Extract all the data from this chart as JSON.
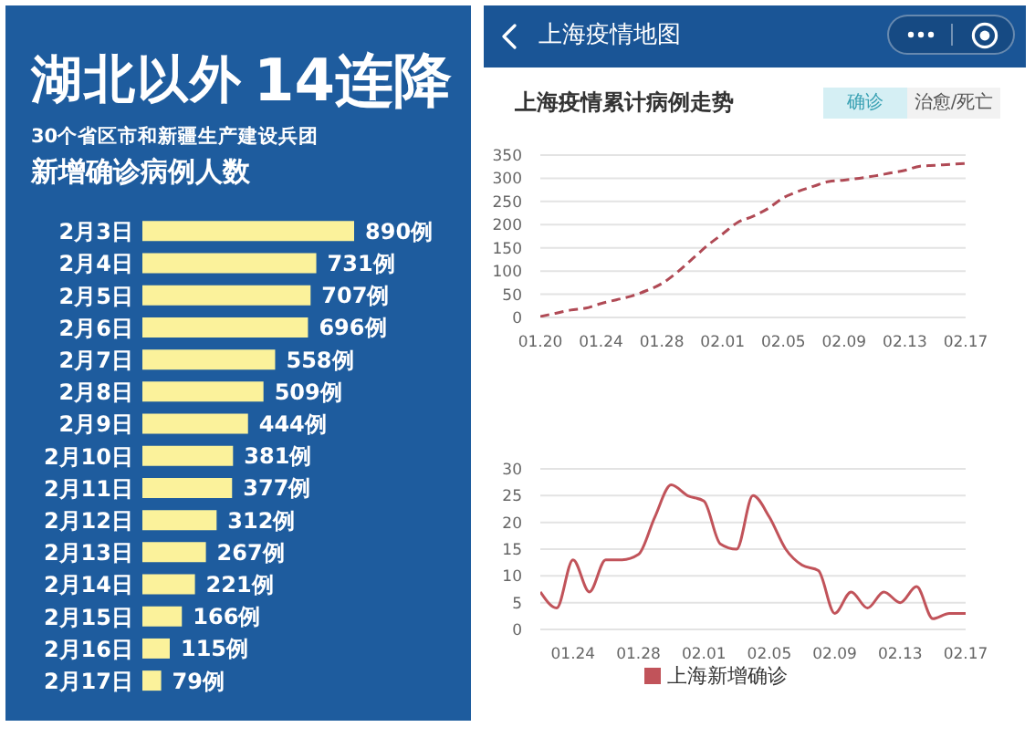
{
  "chart_data": [
    {
      "type": "bar",
      "orientation": "horizontal",
      "title": "湖北以外",
      "subtitle": "30个省区市和新疆生产建设兵团",
      "annotations": [
        "14连降",
        "新增确诊病例人数"
      ],
      "categories": [
        "2月3日",
        "2月4日",
        "2月5日",
        "2月6日",
        "2月7日",
        "2月8日",
        "2月9日",
        "2月10日",
        "2月11日",
        "2月12日",
        "2月13日",
        "2月14日",
        "2月15日",
        "2月16日",
        "2月17日"
      ],
      "values": [
        890,
        731,
        707,
        696,
        558,
        509,
        444,
        381,
        377,
        312,
        267,
        221,
        166,
        115,
        79
      ],
      "value_labels": [
        "890例",
        "731例",
        "707例",
        "696例",
        "558例",
        "509例",
        "444例",
        "381例",
        "377例",
        "312例",
        "267例",
        "221例",
        "166例",
        "115例",
        "79例"
      ],
      "color": "#fbf29b"
    },
    {
      "type": "line",
      "title": "上海疫情累计病例走势",
      "annotations": [
        "上海疫情地图",
        "确诊",
        "治愈/死亡"
      ],
      "categories": [
        "01.20",
        null,
        null,
        null,
        "01.24",
        null,
        null,
        null,
        "01.28",
        null,
        null,
        null,
        "02.01",
        null,
        null,
        null,
        "02.05",
        null,
        null,
        null,
        "02.09",
        null,
        null,
        null,
        "02.13",
        null,
        null,
        null,
        "02.17"
      ],
      "series": [
        {
          "color": "#b04a55",
          "values": [
            2,
            9,
            16,
            20,
            30,
            38,
            46,
            58,
            73,
            97,
            126,
            155,
            180,
            205,
            218,
            235,
            258,
            272,
            283,
            293,
            296,
            300,
            305,
            311,
            317,
            326,
            328,
            330,
            332
          ]
        }
      ],
      "ylim": [
        0,
        350
      ],
      "yticks": [
        0,
        50,
        100,
        150,
        200,
        250,
        300,
        350
      ],
      "grid": "y",
      "line_style": "dashed"
    },
    {
      "type": "line",
      "categories": [
        null,
        null,
        "01.24",
        null,
        null,
        null,
        "01.28",
        null,
        null,
        null,
        "02.01",
        null,
        null,
        null,
        "02.05",
        null,
        null,
        null,
        "02.09",
        null,
        null,
        null,
        "02.13",
        null,
        null,
        null,
        "02.17"
      ],
      "series": [
        {
          "name": "上海新增确诊",
          "color": "#c1535a",
          "values": [
            7,
            4,
            13,
            7,
            13,
            13,
            14,
            21,
            27,
            25,
            24,
            16,
            15,
            25,
            21,
            15,
            12,
            11,
            3,
            7,
            4,
            7,
            5,
            8,
            2,
            3,
            3
          ]
        }
      ],
      "ylim": [
        0,
        30
      ],
      "yticks": [
        0,
        5,
        10,
        15,
        20,
        25,
        30
      ],
      "grid": "y",
      "legend": "bottom"
    }
  ]
}
